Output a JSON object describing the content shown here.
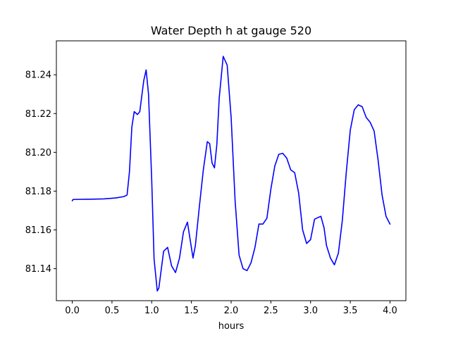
{
  "chart_data": {
    "type": "line",
    "title": "Water Depth h at gauge 520",
    "xlabel": "hours",
    "ylabel": "",
    "xlim": [
      -0.2,
      4.2
    ],
    "ylim": [
      81.1235,
      81.2575
    ],
    "xticks": [
      0.0,
      0.5,
      1.0,
      1.5,
      2.0,
      2.5,
      3.0,
      3.5,
      4.0
    ],
    "xtick_labels": [
      "0.0",
      "0.5",
      "1.0",
      "1.5",
      "2.0",
      "2.5",
      "3.0",
      "3.5",
      "4.0"
    ],
    "yticks": [
      81.14,
      81.16,
      81.18,
      81.2,
      81.22,
      81.24
    ],
    "ytick_labels": [
      "81.14",
      "81.16",
      "81.18",
      "81.20",
      "81.22",
      "81.24"
    ],
    "grid": false,
    "series": [
      {
        "color": "#0000ff",
        "x": [
          0.0,
          0.01,
          0.2,
          0.4,
          0.55,
          0.65,
          0.69,
          0.72,
          0.75,
          0.78,
          0.82,
          0.85,
          0.9,
          0.93,
          0.96,
          1.0,
          1.03,
          1.07,
          1.09,
          1.12,
          1.15,
          1.2,
          1.25,
          1.3,
          1.35,
          1.4,
          1.45,
          1.48,
          1.52,
          1.55,
          1.6,
          1.65,
          1.7,
          1.73,
          1.76,
          1.79,
          1.82,
          1.85,
          1.9,
          1.95,
          2.0,
          2.05,
          2.1,
          2.15,
          2.2,
          2.25,
          2.3,
          2.35,
          2.4,
          2.45,
          2.5,
          2.55,
          2.6,
          2.65,
          2.7,
          2.75,
          2.8,
          2.85,
          2.9,
          2.95,
          3.0,
          3.05,
          3.1,
          3.13,
          3.17,
          3.2,
          3.25,
          3.3,
          3.35,
          3.4,
          3.45,
          3.5,
          3.55,
          3.6,
          3.65,
          3.7,
          3.75,
          3.8,
          3.85,
          3.9,
          3.95,
          4.0
        ],
        "y": [
          81.175,
          81.1757,
          81.1758,
          81.176,
          81.1765,
          81.1772,
          81.178,
          81.19,
          81.213,
          81.221,
          81.2195,
          81.221,
          81.237,
          81.2425,
          81.23,
          81.186,
          81.145,
          81.1285,
          81.13,
          81.1395,
          81.149,
          81.151,
          81.1415,
          81.138,
          81.1455,
          81.159,
          81.164,
          81.156,
          81.1455,
          81.152,
          81.172,
          81.191,
          81.2055,
          81.2045,
          81.1945,
          81.192,
          81.204,
          81.228,
          81.2495,
          81.245,
          81.218,
          81.175,
          81.147,
          81.14,
          81.139,
          81.143,
          81.151,
          81.163,
          81.163,
          81.166,
          81.181,
          81.193,
          81.199,
          81.1995,
          81.197,
          81.191,
          81.1895,
          81.179,
          81.16,
          81.153,
          81.155,
          81.1655,
          81.1665,
          81.167,
          81.161,
          81.152,
          81.1455,
          81.142,
          81.148,
          81.165,
          81.19,
          81.2115,
          81.222,
          81.2245,
          81.2235,
          81.218,
          81.2155,
          81.211,
          81.196,
          81.178,
          81.167,
          81.163
        ]
      }
    ]
  }
}
